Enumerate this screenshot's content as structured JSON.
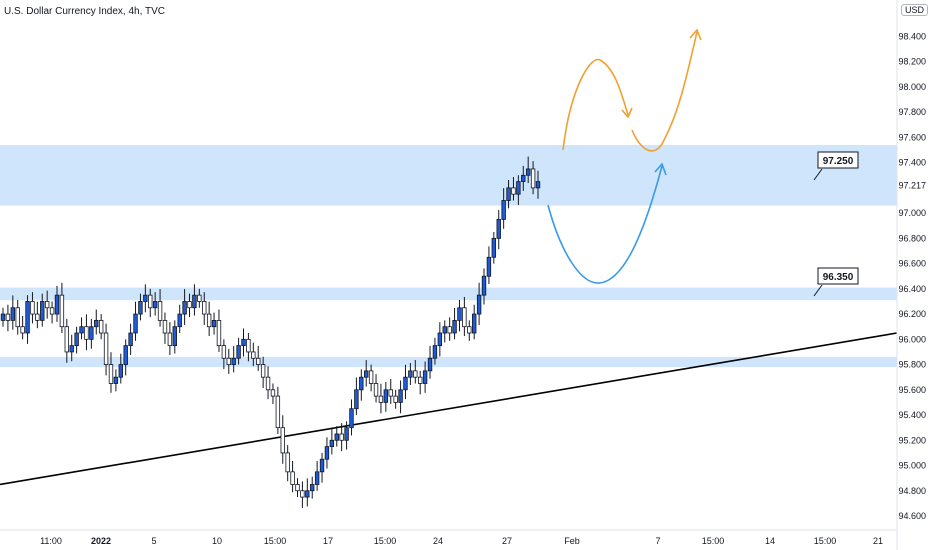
{
  "header": {
    "title": "U.S. Dollar Currency Index, 4h, TVC",
    "currency_badge": "USD"
  },
  "colors": {
    "zone_fill": "#cfe5fb",
    "candle_up": "#1e5bd6",
    "candle_down": "#ffffff",
    "candle_outline": "#131722",
    "trendline": "#000000",
    "arrow_orange": "#f0a030",
    "arrow_blue": "#3a9ae8"
  },
  "chart_data": {
    "type": "candlestick",
    "title": "U.S. Dollar Currency Index, 4h, TVC",
    "y_axis_ticks": [
      "94.600",
      "94.800",
      "95.000",
      "95.200",
      "95.400",
      "95.600",
      "95.800",
      "96.000",
      "96.200",
      "96.400",
      "96.600",
      "96.800",
      "97.000",
      "97.217",
      "97.400",
      "97.600",
      "97.800",
      "98.000",
      "98.200",
      "98.400"
    ],
    "ylim": [
      94.55,
      98.65
    ],
    "x_axis_ticks": [
      "11:00",
      "2022",
      "5",
      "10",
      "15:00",
      "17",
      "15:00",
      "24",
      "27",
      "Feb",
      "7",
      "15:00",
      "14",
      "15:00",
      "21"
    ],
    "zones": [
      {
        "from": 97.06,
        "to": 97.54
      },
      {
        "from": 96.31,
        "to": 96.41
      },
      {
        "from": 95.78,
        "to": 95.86
      }
    ],
    "price_labels": [
      "97.250",
      "96.350"
    ],
    "trendline": {
      "from": [
        0,
        94.85
      ],
      "to": [
        1,
        96.05
      ]
    },
    "close_path": [
      96.2,
      96.15,
      96.25,
      96.1,
      96.05,
      96.3,
      96.2,
      96.15,
      96.3,
      96.25,
      96.2,
      96.35,
      96.1,
      95.9,
      95.95,
      96.05,
      96.1,
      96.0,
      96.1,
      96.15,
      96.05,
      95.8,
      95.65,
      95.7,
      95.8,
      95.95,
      96.05,
      96.2,
      96.3,
      96.35,
      96.25,
      96.3,
      96.15,
      96.05,
      95.95,
      96.1,
      96.2,
      96.3,
      96.25,
      96.35,
      96.3,
      96.2,
      96.1,
      96.15,
      95.95,
      95.85,
      95.8,
      95.85,
      95.95,
      96.0,
      95.9,
      95.85,
      95.8,
      95.7,
      95.6,
      95.55,
      95.3,
      95.1,
      94.95,
      94.85,
      94.8,
      94.75,
      94.8,
      94.85,
      94.95,
      95.05,
      95.15,
      95.2,
      95.25,
      95.2,
      95.3,
      95.45,
      95.6,
      95.7,
      95.75,
      95.65,
      95.55,
      95.5,
      95.6,
      95.55,
      95.5,
      95.6,
      95.7,
      95.75,
      95.7,
      95.65,
      95.75,
      95.85,
      95.95,
      96.05,
      96.1,
      96.05,
      96.15,
      96.25,
      96.1,
      96.05,
      96.2,
      96.35,
      96.5,
      96.65,
      96.8,
      96.95,
      97.1,
      97.2,
      97.15,
      97.25,
      97.3,
      97.35,
      97.2,
      97.25
    ]
  }
}
